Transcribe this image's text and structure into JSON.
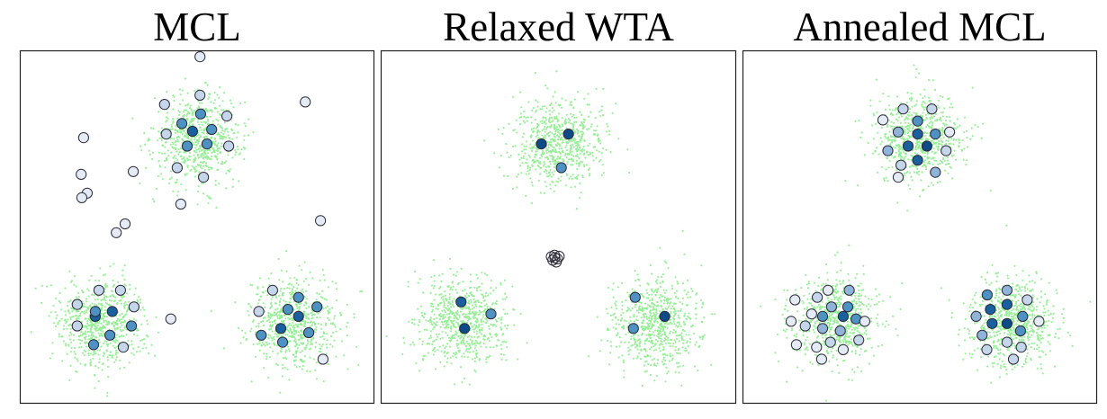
{
  "chart_data": [
    {
      "type": "scatter",
      "title": "MCL",
      "xlim": [
        0,
        100
      ],
      "ylim": [
        0,
        100
      ],
      "grid": false,
      "clusters": [
        {
          "cx": 50,
          "cy": 75,
          "spread": 6.2,
          "n": 700,
          "color": "#90EE90"
        },
        {
          "cx": 23,
          "cy": 23,
          "spread": 6.2,
          "n": 700,
          "color": "#90EE90"
        },
        {
          "cx": 77,
          "cy": 23,
          "spread": 6.2,
          "n": 700,
          "color": "#90EE90"
        }
      ],
      "hypotheses": [
        {
          "x": 50.8,
          "y": 98.2,
          "c": "#e4ebf5"
        },
        {
          "x": 40.8,
          "y": 84.7,
          "c": "#c6d6ea"
        },
        {
          "x": 50.8,
          "y": 87.3,
          "c": "#c6d6ea"
        },
        {
          "x": 58.4,
          "y": 81.4,
          "c": "#c6d6ea"
        },
        {
          "x": 41.3,
          "y": 76.3,
          "c": "#c6d6ea"
        },
        {
          "x": 58.9,
          "y": 72.9,
          "c": "#c6d6ea"
        },
        {
          "x": 44.4,
          "y": 66.8,
          "c": "#c6d6ea"
        },
        {
          "x": 51.8,
          "y": 64.1,
          "c": "#c6d6ea"
        },
        {
          "x": 45.7,
          "y": 79.3,
          "c": "#4e92c4"
        },
        {
          "x": 51.0,
          "y": 82.0,
          "c": "#4e92c4"
        },
        {
          "x": 54.1,
          "y": 77.6,
          "c": "#4e92c4"
        },
        {
          "x": 47.2,
          "y": 72.9,
          "c": "#4e92c4"
        },
        {
          "x": 52.8,
          "y": 73.5,
          "c": "#4e92c4"
        },
        {
          "x": 48.7,
          "y": 77.1,
          "c": "#1a5f9e"
        },
        {
          "x": 80.5,
          "y": 85.4,
          "c": "#e4ebf5"
        },
        {
          "x": 18.0,
          "y": 75.3,
          "c": "#e4ebf5"
        },
        {
          "x": 17.3,
          "y": 64.9,
          "c": "#e4ebf5"
        },
        {
          "x": 32.0,
          "y": 65.7,
          "c": "#e4ebf5"
        },
        {
          "x": 19.0,
          "y": 59.6,
          "c": "#e4ebf5"
        },
        {
          "x": 17.5,
          "y": 58.3,
          "c": "#e4ebf5"
        },
        {
          "x": 29.7,
          "y": 50.9,
          "c": "#e4ebf5"
        },
        {
          "x": 27.2,
          "y": 48.4,
          "c": "#e4ebf5"
        },
        {
          "x": 45.4,
          "y": 56.5,
          "c": "#e4ebf5"
        },
        {
          "x": 84.8,
          "y": 51.8,
          "c": "#e4ebf5"
        },
        {
          "x": 16.2,
          "y": 28.1,
          "c": "#c6d6ea"
        },
        {
          "x": 22.3,
          "y": 32.1,
          "c": "#c6d6ea"
        },
        {
          "x": 28.4,
          "y": 32.1,
          "c": "#c6d6ea"
        },
        {
          "x": 32.2,
          "y": 27.4,
          "c": "#c6d6ea"
        },
        {
          "x": 16.2,
          "y": 22.0,
          "c": "#c6d6ea"
        },
        {
          "x": 29.2,
          "y": 16.0,
          "c": "#c6d6ea"
        },
        {
          "x": 21.3,
          "y": 24.7,
          "c": "#1a5f9e"
        },
        {
          "x": 26.1,
          "y": 26.1,
          "c": "#1a5f9e"
        },
        {
          "x": 21.3,
          "y": 26.1,
          "c": "#4e92c4"
        },
        {
          "x": 31.5,
          "y": 22.0,
          "c": "#4e92c4"
        },
        {
          "x": 25.4,
          "y": 19.4,
          "c": "#4e92c4"
        },
        {
          "x": 20.8,
          "y": 16.7,
          "c": "#4e92c4"
        },
        {
          "x": 42.6,
          "y": 24.0,
          "c": "#e4ebf5"
        },
        {
          "x": 71.3,
          "y": 32.1,
          "c": "#c6d6ea"
        },
        {
          "x": 78.6,
          "y": 30.1,
          "c": "#4e92c4"
        },
        {
          "x": 75.6,
          "y": 26.7,
          "c": "#4e92c4"
        },
        {
          "x": 83.8,
          "y": 27.4,
          "c": "#4e92c4"
        },
        {
          "x": 67.4,
          "y": 26.1,
          "c": "#c6d6ea"
        },
        {
          "x": 78.6,
          "y": 24.7,
          "c": "#1a5f9e"
        },
        {
          "x": 73.6,
          "y": 21.3,
          "c": "#1a5f9e"
        },
        {
          "x": 68.1,
          "y": 19.4,
          "c": "#4e92c4"
        },
        {
          "x": 81.5,
          "y": 20.1,
          "c": "#4e92c4"
        },
        {
          "x": 74.1,
          "y": 17.4,
          "c": "#4e92c4"
        },
        {
          "x": 85.5,
          "y": 12.6,
          "c": "#e4ebf5"
        }
      ]
    },
    {
      "type": "scatter",
      "title": "Relaxed WTA",
      "xlim": [
        0,
        100
      ],
      "ylim": [
        0,
        100
      ],
      "grid": false,
      "clusters": [
        {
          "cx": 50,
          "cy": 74,
          "spread": 6.2,
          "n": 700,
          "color": "#90EE90"
        },
        {
          "cx": 23,
          "cy": 23,
          "spread": 6.2,
          "n": 700,
          "color": "#90EE90"
        },
        {
          "cx": 77,
          "cy": 23,
          "spread": 6.2,
          "n": 700,
          "color": "#90EE90"
        }
      ],
      "hypotheses": [
        {
          "x": 45.2,
          "y": 73.5,
          "c": "#0d4a87"
        },
        {
          "x": 52.8,
          "y": 76.3,
          "c": "#0d4a87"
        },
        {
          "x": 50.8,
          "y": 66.8,
          "c": "#4e92c4"
        },
        {
          "x": 49.0,
          "y": 41.3,
          "c": "#ffffff"
        },
        {
          "x": 49.7,
          "y": 41.0,
          "c": "#ffffff"
        },
        {
          "x": 48.4,
          "y": 40.6,
          "c": "#ffffff"
        },
        {
          "x": 49.4,
          "y": 40.1,
          "c": "#ffffff"
        },
        {
          "x": 48.0,
          "y": 41.6,
          "c": "#ffffff"
        },
        {
          "x": 50.2,
          "y": 41.7,
          "c": "#ffffff"
        },
        {
          "x": 48.9,
          "y": 42.0,
          "c": "#ffffff"
        },
        {
          "x": 22.6,
          "y": 28.8,
          "c": "#1a5f9e"
        },
        {
          "x": 31.0,
          "y": 25.4,
          "c": "#4e92c4"
        },
        {
          "x": 23.6,
          "y": 21.3,
          "c": "#0d4a87"
        },
        {
          "x": 71.6,
          "y": 30.1,
          "c": "#4e92c4"
        },
        {
          "x": 79.9,
          "y": 24.7,
          "c": "#0d4a87"
        },
        {
          "x": 71.1,
          "y": 21.3,
          "c": "#4e92c4"
        }
      ]
    },
    {
      "type": "scatter",
      "title": "Annealed MCL",
      "xlim": [
        0,
        100
      ],
      "ylim": [
        0,
        100
      ],
      "grid": false,
      "clusters": [
        {
          "cx": 50,
          "cy": 75,
          "spread": 6.2,
          "n": 700,
          "color": "#90EE90"
        },
        {
          "cx": 26,
          "cy": 24,
          "spread": 6.2,
          "n": 700,
          "color": "#90EE90"
        },
        {
          "cx": 76,
          "cy": 23,
          "spread": 6.2,
          "n": 700,
          "color": "#90EE90"
        }
      ],
      "hypotheses": [
        {
          "x": 45.3,
          "y": 83.4,
          "c": "#c6d6ea"
        },
        {
          "x": 53.4,
          "y": 83.4,
          "c": "#c6d6ea"
        },
        {
          "x": 39.6,
          "y": 80.3,
          "c": "#e4ebf5"
        },
        {
          "x": 49.4,
          "y": 80.0,
          "c": "#4e92c4"
        },
        {
          "x": 43.9,
          "y": 76.9,
          "c": "#8fb3d9"
        },
        {
          "x": 49.4,
          "y": 76.3,
          "c": "#1a5f9e"
        },
        {
          "x": 54.4,
          "y": 76.3,
          "c": "#4e92c4"
        },
        {
          "x": 58.4,
          "y": 76.9,
          "c": "#e4ebf5"
        },
        {
          "x": 46.7,
          "y": 72.9,
          "c": "#1a5f9e"
        },
        {
          "x": 52.0,
          "y": 72.9,
          "c": "#0d4a87"
        },
        {
          "x": 41.0,
          "y": 71.6,
          "c": "#8fb3d9"
        },
        {
          "x": 57.4,
          "y": 71.6,
          "c": "#c6d6ea"
        },
        {
          "x": 49.4,
          "y": 68.9,
          "c": "#1a5f9e"
        },
        {
          "x": 44.7,
          "y": 67.5,
          "c": "#c6d6ea"
        },
        {
          "x": 54.4,
          "y": 65.5,
          "c": "#8fb3d9"
        },
        {
          "x": 43.9,
          "y": 64.1,
          "c": "#e4ebf5"
        },
        {
          "x": 24.1,
          "y": 32.1,
          "c": "#e4ebf5"
        },
        {
          "x": 30.1,
          "y": 32.1,
          "c": "#8fb3d9"
        },
        {
          "x": 14.8,
          "y": 29.4,
          "c": "#e4ebf5"
        },
        {
          "x": 21.1,
          "y": 30.1,
          "c": "#c6d6ea"
        },
        {
          "x": 25.1,
          "y": 27.4,
          "c": "#8fb3d9"
        },
        {
          "x": 29.7,
          "y": 27.4,
          "c": "#4e92c4"
        },
        {
          "x": 19.5,
          "y": 25.4,
          "c": "#e4ebf5"
        },
        {
          "x": 22.6,
          "y": 24.7,
          "c": "#4e92c4"
        },
        {
          "x": 28.4,
          "y": 24.7,
          "c": "#1a5f9e"
        },
        {
          "x": 32.0,
          "y": 24.0,
          "c": "#4e92c4"
        },
        {
          "x": 13.7,
          "y": 23.3,
          "c": "#e4ebf5"
        },
        {
          "x": 17.7,
          "y": 22.0,
          "c": "#c6d6ea"
        },
        {
          "x": 22.6,
          "y": 21.3,
          "c": "#8fb3d9"
        },
        {
          "x": 27.6,
          "y": 20.6,
          "c": "#8fb3d9"
        },
        {
          "x": 34.5,
          "y": 23.3,
          "c": "#e4ebf5"
        },
        {
          "x": 32.8,
          "y": 18.0,
          "c": "#c6d6ea"
        },
        {
          "x": 24.8,
          "y": 17.4,
          "c": "#c6d6ea"
        },
        {
          "x": 15.2,
          "y": 16.7,
          "c": "#e4ebf5"
        },
        {
          "x": 20.9,
          "y": 16.0,
          "c": "#e4ebf5"
        },
        {
          "x": 28.4,
          "y": 15.3,
          "c": "#e4ebf5"
        },
        {
          "x": 22.3,
          "y": 12.6,
          "c": "#e4ebf5"
        },
        {
          "x": 74.6,
          "y": 32.1,
          "c": "#8fb3d9"
        },
        {
          "x": 69.0,
          "y": 30.8,
          "c": "#4e92c4"
        },
        {
          "x": 80.3,
          "y": 29.4,
          "c": "#c6d6ea"
        },
        {
          "x": 74.6,
          "y": 28.1,
          "c": "#1a5f9e"
        },
        {
          "x": 79.0,
          "y": 24.7,
          "c": "#4e92c4"
        },
        {
          "x": 69.9,
          "y": 26.7,
          "c": "#1a5f9e"
        },
        {
          "x": 65.9,
          "y": 24.7,
          "c": "#8fb3d9"
        },
        {
          "x": 70.4,
          "y": 22.7,
          "c": "#1a5f9e"
        },
        {
          "x": 74.6,
          "y": 22.7,
          "c": "#0d4a87"
        },
        {
          "x": 78.4,
          "y": 20.6,
          "c": "#4e92c4"
        },
        {
          "x": 67.6,
          "y": 19.4,
          "c": "#8fb3d9"
        },
        {
          "x": 83.6,
          "y": 23.3,
          "c": "#e4ebf5"
        },
        {
          "x": 74.6,
          "y": 17.4,
          "c": "#c6d6ea"
        },
        {
          "x": 68.9,
          "y": 15.3,
          "c": "#c6d6ea"
        },
        {
          "x": 78.6,
          "y": 16.0,
          "c": "#c6d6ea"
        },
        {
          "x": 76.4,
          "y": 12.6,
          "c": "#c6d6ea"
        }
      ]
    }
  ]
}
